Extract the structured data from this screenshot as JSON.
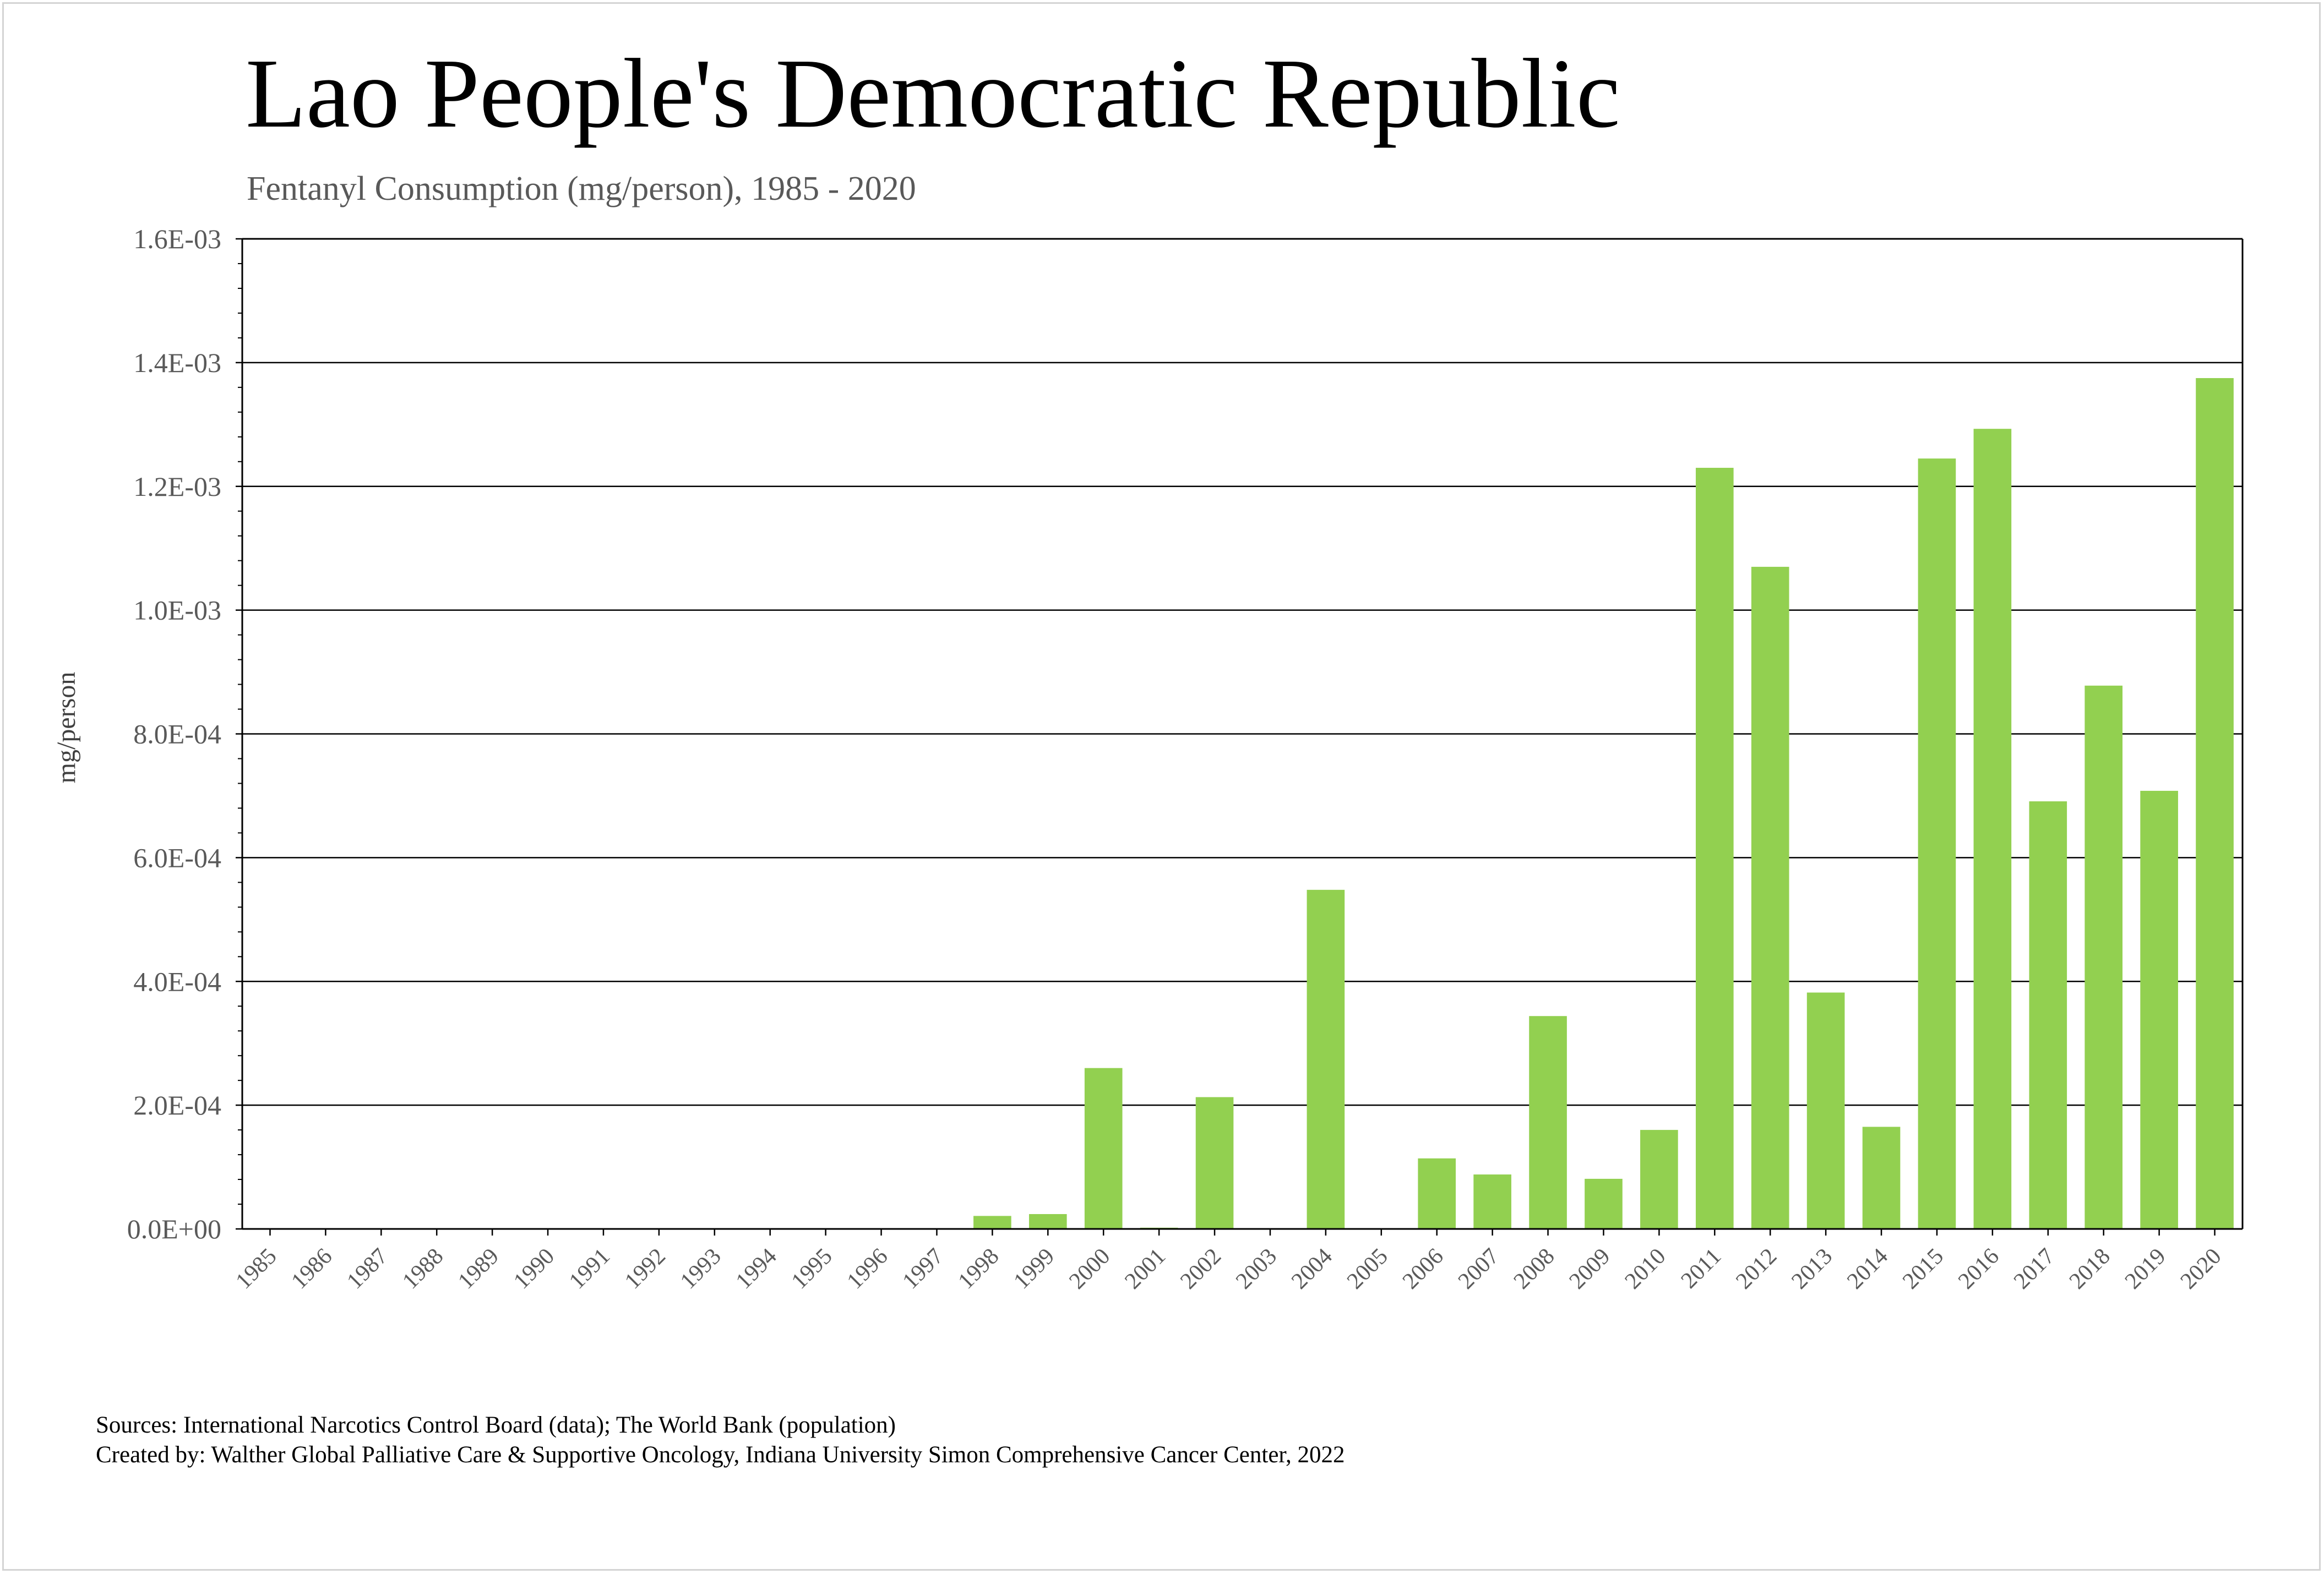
{
  "title": "Lao People's Democratic Republic",
  "subtitle": "Fentanyl Consumption (mg/person), 1985 - 2020",
  "sources": "Sources: International Narcotics Control Board (data); The World Bank (population)",
  "created_by": "Created by: Walther Global Palliative Care & Supportive Oncology, Indiana University Simon Comprehensive Cancer Center, 2022",
  "colors": {
    "bar": "#92d050",
    "gridline": "#000000",
    "tick_text": "#595959"
  },
  "chart_data": {
    "type": "bar",
    "title": "Lao People's Democratic Republic",
    "subtitle": "Fentanyl Consumption (mg/person), 1985 - 2020",
    "xlabel": "",
    "ylabel": "mg/person",
    "ylim": [
      0,
      0.0016
    ],
    "yticks": [
      0,
      0.0002,
      0.0004,
      0.0006,
      0.0008,
      0.001,
      0.0012,
      0.0014,
      0.0016
    ],
    "ytick_labels": [
      "0.0E+00",
      "2.0E-04",
      "4.0E-04",
      "6.0E-04",
      "8.0E-04",
      "1.0E-03",
      "1.2E-03",
      "1.4E-03",
      "1.6E-03"
    ],
    "grid": true,
    "legend": "none",
    "categories": [
      "1985",
      "1986",
      "1987",
      "1988",
      "1989",
      "1990",
      "1991",
      "1992",
      "1993",
      "1994",
      "1995",
      "1996",
      "1997",
      "1998",
      "1999",
      "2000",
      "2001",
      "2002",
      "2003",
      "2004",
      "2005",
      "2006",
      "2007",
      "2008",
      "2009",
      "2010",
      "2011",
      "2012",
      "2013",
      "2014",
      "2015",
      "2016",
      "2017",
      "2018",
      "2019",
      "2020"
    ],
    "values": [
      0,
      0,
      0,
      0,
      0,
      0,
      0,
      0,
      0,
      0,
      0,
      0,
      0,
      2.1e-05,
      2.4e-05,
      0.00026,
      2e-06,
      0.000213,
      0,
      0.000548,
      0,
      0.000114,
      8.8e-05,
      0.000344,
      8.1e-05,
      0.00016,
      0.00123,
      0.00107,
      0.000382,
      0.000165,
      0.001245,
      0.001293,
      0.000691,
      0.000878,
      0.000708,
      0.001375
    ]
  }
}
